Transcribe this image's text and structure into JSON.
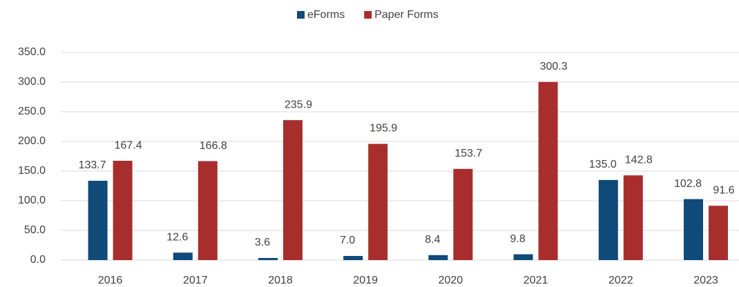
{
  "chart_data": {
    "type": "bar",
    "categories": [
      "2016",
      "2017",
      "2018",
      "2019",
      "2020",
      "2021",
      "2022",
      "2023"
    ],
    "series": [
      {
        "name": "eForms",
        "color": "#0f4a78",
        "values": [
          133.7,
          12.6,
          3.6,
          7.0,
          8.4,
          9.8,
          135.0,
          102.8
        ],
        "value_labels": [
          "133.7",
          "12.6",
          "3.6",
          "7.0",
          "8.4",
          "9.8",
          "135.0",
          "102.8"
        ]
      },
      {
        "name": "Paper Forms",
        "color": "#a82e2e",
        "values": [
          167.4,
          166.8,
          235.9,
          195.9,
          153.7,
          300.3,
          142.8,
          91.6
        ],
        "value_labels": [
          "167.4",
          "166.8",
          "235.9",
          "195.9",
          "153.7",
          "300.3",
          "142.8",
          "91.6"
        ]
      }
    ],
    "ylim": [
      0,
      350
    ],
    "yticks": [
      {
        "value": 0,
        "label": "0.0"
      },
      {
        "value": 50,
        "label": "50.0"
      },
      {
        "value": 100,
        "label": "100.0"
      },
      {
        "value": 150,
        "label": "150.0"
      },
      {
        "value": 200,
        "label": "200.0"
      },
      {
        "value": 250,
        "label": "250.0"
      },
      {
        "value": 300,
        "label": "300.0"
      },
      {
        "value": 350,
        "label": "350.0"
      }
    ],
    "grid": true,
    "legend": "top"
  }
}
